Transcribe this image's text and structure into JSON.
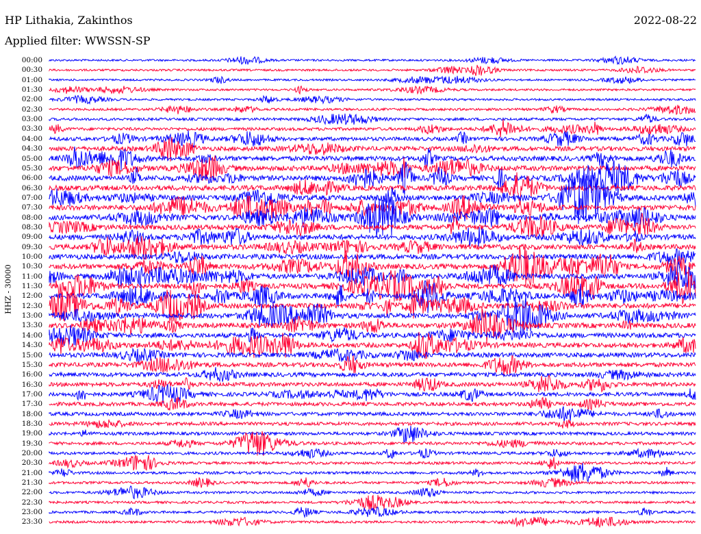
{
  "header": {
    "station": "HP Lithakia, Zakinthos",
    "date": "2022-08-22",
    "filter": "Applied filter: WWSSN-SP"
  },
  "colors": {
    "odd_trace": "#0000ff",
    "even_trace": "#ff0033",
    "background": "#ffffff"
  },
  "chart_data": {
    "type": "line",
    "title": "HP Lithakia, Zakinthos",
    "subtitle": "Applied filter: WWSSN-SP",
    "date": "2022-08-22",
    "ylabel": "HHZ - 30000",
    "xlabel": "",
    "trace_minutes": 30,
    "row_labels": [
      "00:00",
      "00:30",
      "01:00",
      "01:30",
      "02:00",
      "02:30",
      "03:00",
      "03:30",
      "04:00",
      "04:30",
      "05:00",
      "05:30",
      "06:00",
      "06:30",
      "07:00",
      "07:30",
      "08:00",
      "08:30",
      "09:00",
      "09:30",
      "10:00",
      "10:30",
      "11:00",
      "11:30",
      "12:00",
      "12:30",
      "13:00",
      "13:30",
      "14:00",
      "14:30",
      "15:00",
      "15:30",
      "16:00",
      "16:30",
      "17:00",
      "17:30",
      "18:00",
      "18:30",
      "19:00",
      "19:30",
      "20:00",
      "20:30",
      "21:00",
      "21:30",
      "22:00",
      "22:30",
      "23:00",
      "23:30"
    ],
    "relative_amplitude": [
      0.1,
      0.12,
      0.08,
      0.12,
      0.14,
      0.22,
      0.3,
      0.4,
      0.6,
      0.8,
      0.9,
      0.95,
      1.0,
      1.0,
      1.0,
      1.0,
      1.0,
      1.0,
      1.0,
      1.0,
      1.0,
      1.0,
      1.0,
      1.0,
      1.0,
      1.0,
      1.0,
      0.95,
      0.9,
      0.9,
      0.85,
      0.8,
      0.75,
      0.7,
      0.65,
      0.6,
      0.55,
      0.5,
      0.45,
      0.4,
      0.35,
      0.3,
      0.3,
      0.25,
      0.22,
      0.22,
      0.22,
      0.22
    ]
  }
}
